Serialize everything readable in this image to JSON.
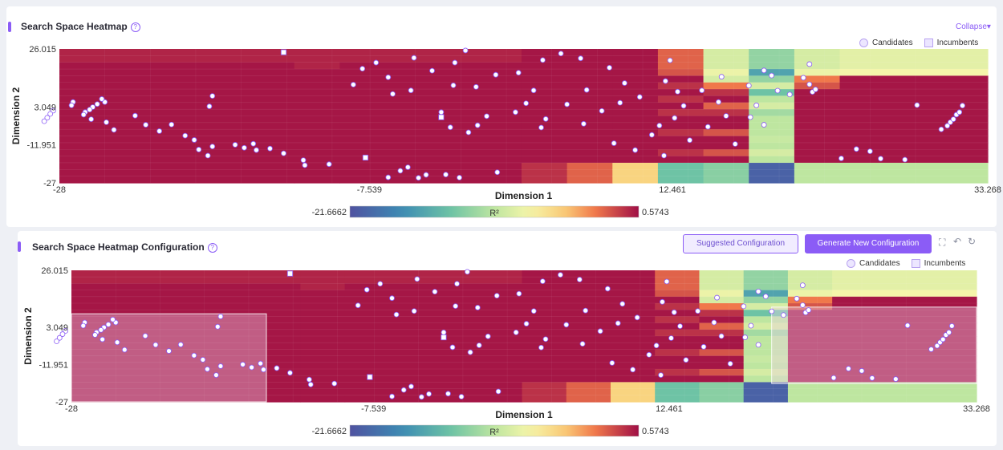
{
  "panel1": {
    "title": "Search Space Heatmap",
    "help_icon": "?",
    "collapse_label": "Collapse▾",
    "legend": {
      "candidates": "Candidates",
      "incumbents": "Incumbents"
    }
  },
  "panel2": {
    "title": "Search Space Heatmap Configuration",
    "help_icon": "?",
    "suggested_label": "Suggested Configuration",
    "generate_label": "Generate New Configuration",
    "legend": {
      "candidates": "Candidates",
      "incumbents": "Incumbents"
    },
    "icons": {
      "fullscreen": "⛶",
      "undo": "↶",
      "refresh": "↻"
    }
  },
  "colors": {
    "accent": "#8b5cf6"
  },
  "chart_data": {
    "type": "heatmap",
    "xlabel": "Dimension  1",
    "ylabel": "Dimension  2",
    "xticks": [
      "-28",
      "-7.539",
      "12.461",
      "33.268"
    ],
    "yticks": [
      "26.015",
      "3.049",
      "-11.951",
      "-27"
    ],
    "xlim": [
      -28,
      33.268
    ],
    "ylim": [
      -27,
      26.015
    ],
    "colorbar": {
      "min_label": "-21.6662",
      "max_label": "0.5743",
      "label": "R²",
      "min": -21.6662,
      "max": 0.5743
    },
    "columns_x": [
      -28,
      -25,
      -22,
      -19,
      -16,
      -13,
      -10,
      -7.5,
      -4.5,
      -1.5,
      1.5,
      4.5,
      7.5,
      10.5,
      13.5,
      16.5,
      19.5,
      22.5,
      25.5,
      28.5,
      33.268
    ],
    "column_groups": [
      {
        "x0": -28,
        "x1": -12.5,
        "rows": "base"
      },
      {
        "x0": -12.5,
        "x1": -9.5,
        "rows": "mid"
      },
      {
        "x0": -9.5,
        "x1": 2.5,
        "rows": "base"
      },
      {
        "x0": 2.5,
        "x1": 5.5,
        "rows": "c1"
      },
      {
        "x0": 5.5,
        "x1": 8.5,
        "rows": "c2"
      },
      {
        "x0": 8.5,
        "x1": 11.5,
        "rows": "c3"
      },
      {
        "x0": 11.5,
        "x1": 14.5,
        "rows": "c4"
      },
      {
        "x0": 14.5,
        "x1": 17.5,
        "rows": "c5"
      },
      {
        "x0": 17.5,
        "x1": 20.5,
        "rows": "c6"
      },
      {
        "x0": 20.5,
        "x1": 23.5,
        "rows": "c7"
      },
      {
        "x0": 23.5,
        "x1": 33.268,
        "rows": "c8"
      }
    ],
    "row_profiles": {
      "base": [
        0.97,
        0.97,
        0.99,
        0.99,
        0.99,
        0.99,
        0.99,
        0.99,
        0.99,
        0.99,
        0.99,
        0.99,
        0.99,
        0.99,
        0.99,
        0.99,
        0.99,
        0.99,
        0.99,
        0.99
      ],
      "mid": [
        0.97,
        0.97,
        0.97,
        0.99,
        0.99,
        0.99,
        0.99,
        0.99,
        0.99,
        0.99,
        0.99,
        0.99,
        0.99,
        0.99,
        0.99,
        0.99,
        0.99,
        0.99,
        0.99,
        0.99
      ],
      "c1": [
        0.99,
        0.99,
        0.99,
        0.99,
        0.99,
        0.99,
        0.99,
        0.99,
        0.99,
        0.99,
        0.99,
        0.99,
        0.99,
        0.99,
        0.99,
        0.99,
        0.99,
        0.95,
        0.95,
        0.95
      ],
      "c2": [
        0.99,
        0.99,
        0.99,
        0.99,
        0.99,
        0.99,
        0.99,
        0.99,
        0.99,
        0.99,
        0.99,
        0.99,
        0.99,
        0.99,
        0.99,
        0.99,
        0.99,
        0.88,
        0.88,
        0.88
      ],
      "c3": [
        0.99,
        0.99,
        0.99,
        0.99,
        0.99,
        0.99,
        0.99,
        0.99,
        0.99,
        0.99,
        0.99,
        0.99,
        0.99,
        0.99,
        0.99,
        0.99,
        0.99,
        0.72,
        0.72,
        0.72
      ],
      "c4": [
        0.88,
        0.88,
        0.88,
        0.9,
        0.99,
        0.95,
        0.99,
        0.95,
        0.99,
        0.95,
        0.99,
        0.99,
        0.95,
        0.99,
        0.99,
        0.95,
        0.99,
        0.35,
        0.35,
        0.35
      ],
      "c5": [
        0.55,
        0.55,
        0.55,
        0.6,
        0.55,
        0.85,
        0.95,
        0.99,
        0.88,
        0.95,
        0.99,
        0.99,
        0.9,
        0.99,
        0.99,
        0.9,
        0.99,
        0.4,
        0.4,
        0.4
      ],
      "c6": [
        0.42,
        0.42,
        0.42,
        0.25,
        0.42,
        0.55,
        0.35,
        0.5,
        0.55,
        0.45,
        0.5,
        0.5,
        0.5,
        0.52,
        0.5,
        0.55,
        0.5,
        0.05,
        0.05,
        0.05
      ],
      "c7": [
        0.55,
        0.55,
        0.55,
        0.6,
        0.85,
        0.9,
        0.99,
        0.99,
        0.99,
        0.99,
        0.99,
        0.99,
        0.99,
        0.99,
        0.99,
        0.99,
        0.99,
        0.5,
        0.5,
        0.5
      ],
      "c8": [
        0.58,
        0.58,
        0.58,
        0.62,
        0.99,
        0.99,
        0.99,
        0.99,
        0.99,
        0.99,
        0.99,
        0.99,
        0.99,
        0.99,
        0.99,
        0.99,
        0.99,
        0.5,
        0.5,
        0.5
      ]
    },
    "candidates": [
      [
        -25.5,
        4.2
      ],
      [
        -25.0,
        5.0
      ],
      [
        -25.8,
        3.0
      ],
      [
        -26.0,
        2.0
      ],
      [
        -26.3,
        1.0
      ],
      [
        -26.4,
        0.0
      ],
      [
        -25.2,
        6.2
      ],
      [
        -25.9,
        -1.8
      ],
      [
        -24.9,
        -3.0
      ],
      [
        -24.4,
        -6.0
      ],
      [
        -23.0,
        -0.4
      ],
      [
        -22.3,
        -4.0
      ],
      [
        -21.4,
        -6.5
      ],
      [
        -19.7,
        -8.3
      ],
      [
        -19.1,
        -10.0
      ],
      [
        -18.8,
        -13.8
      ],
      [
        -18.2,
        -16.2
      ],
      [
        -17.9,
        -12.6
      ],
      [
        -16.4,
        -11.9
      ],
      [
        -15.8,
        -13.1
      ],
      [
        -15.2,
        -11.5
      ],
      [
        -15.0,
        -14.0
      ],
      [
        -14.1,
        -13.4
      ],
      [
        -13.2,
        -15.3
      ],
      [
        -11.9,
        -18.0
      ],
      [
        -11.8,
        -20.0
      ],
      [
        -10.2,
        -19.6
      ],
      [
        -8.6,
        11.9
      ],
      [
        -8.0,
        18.2
      ],
      [
        -7.1,
        20.6
      ],
      [
        -6.3,
        14.8
      ],
      [
        -4.6,
        22.5
      ],
      [
        -3.4,
        17.4
      ],
      [
        -1.9,
        20.6
      ],
      [
        -1.2,
        25.4
      ],
      [
        -2.0,
        11.6
      ],
      [
        -4.8,
        9.6
      ],
      [
        -6.0,
        8.2
      ],
      [
        -2.8,
        1.0
      ],
      [
        -2.2,
        -5.0
      ],
      [
        -1.0,
        -7.0
      ],
      [
        -0.4,
        -4.2
      ],
      [
        0.2,
        -0.6
      ],
      [
        2.1,
        1.0
      ],
      [
        2.8,
        4.5
      ],
      [
        3.3,
        9.6
      ],
      [
        -0.5,
        11.0
      ],
      [
        0.8,
        15.8
      ],
      [
        2.3,
        16.6
      ],
      [
        3.9,
        21.6
      ],
      [
        5.1,
        24.2
      ],
      [
        6.4,
        22.3
      ],
      [
        8.3,
        18.6
      ],
      [
        9.3,
        12.5
      ],
      [
        6.8,
        9.8
      ],
      [
        5.5,
        4.1
      ],
      [
        4.1,
        -1.7
      ],
      [
        3.8,
        -5.1
      ],
      [
        6.6,
        -3.6
      ],
      [
        7.8,
        1.5
      ],
      [
        9.0,
        4.7
      ],
      [
        10.3,
        7.0
      ],
      [
        12.3,
        21.5
      ],
      [
        12.0,
        13.3
      ],
      [
        12.8,
        9.1
      ],
      [
        13.2,
        3.5
      ],
      [
        12.6,
        -1.3
      ],
      [
        11.6,
        -4.3
      ],
      [
        11.1,
        -8.0
      ],
      [
        8.6,
        -11.3
      ],
      [
        10.0,
        -14.0
      ],
      [
        11.9,
        -16.2
      ],
      [
        13.6,
        -10.1
      ],
      [
        14.8,
        -4.8
      ],
      [
        16.0,
        -0.5
      ],
      [
        17.5,
        11.5
      ],
      [
        15.7,
        15.0
      ],
      [
        14.4,
        9.6
      ],
      [
        15.5,
        5.0
      ],
      [
        16.6,
        -11.6
      ],
      [
        18.5,
        -4.0
      ],
      [
        17.6,
        -1.0
      ],
      [
        18.0,
        3.7
      ],
      [
        18.5,
        17.5
      ],
      [
        19.0,
        15.5
      ],
      [
        19.4,
        9.5
      ],
      [
        20.2,
        8.0
      ],
      [
        21.5,
        20.0
      ],
      [
        21.1,
        14.6
      ],
      [
        21.5,
        12.0
      ],
      [
        21.7,
        9.0
      ],
      [
        21.9,
        10.0
      ],
      [
        -5.0,
        -20.8
      ],
      [
        -5.5,
        -22.2
      ],
      [
        -3.8,
        -23.8
      ],
      [
        -2.5,
        -23.7
      ],
      [
        -1.6,
        -24.9
      ],
      [
        -4.3,
        -25.0
      ],
      [
        -6.3,
        -24.8
      ],
      [
        0.9,
        -22.8
      ],
      [
        30.2,
        -5.8
      ],
      [
        30.6,
        -4.4
      ],
      [
        30.8,
        -3.0
      ],
      [
        31.0,
        -1.8
      ],
      [
        31.2,
        0.0
      ],
      [
        31.4,
        1.0
      ],
      [
        31.6,
        3.6
      ],
      [
        28.6,
        3.8
      ],
      [
        27.8,
        -17.8
      ],
      [
        26.2,
        -17.4
      ],
      [
        25.5,
        -14.5
      ],
      [
        24.6,
        -13.6
      ],
      [
        23.6,
        -17.3
      ],
      [
        -17.9,
        7.4
      ],
      [
        -18.1,
        3.3
      ],
      [
        -20.6,
        -3.9
      ],
      [
        -27.1,
        5.0
      ],
      [
        -27.2,
        3.7
      ],
      [
        -28.4,
        1.6
      ],
      [
        -28.6,
        0.3
      ],
      [
        -28.8,
        -1.2
      ],
      [
        -29.0,
        -2.6
      ]
    ],
    "incumbents": [
      [
        -13.2,
        24.7
      ],
      [
        -2.8,
        -1.0
      ],
      [
        -7.8,
        -17.0
      ]
    ],
    "selections": [
      {
        "x0": -28,
        "x1": -14.8,
        "y0": -27,
        "y1": 8.5
      },
      {
        "x0": 19.4,
        "x1": 33.268,
        "y0": -19.6,
        "y1": 11.2
      }
    ]
  }
}
